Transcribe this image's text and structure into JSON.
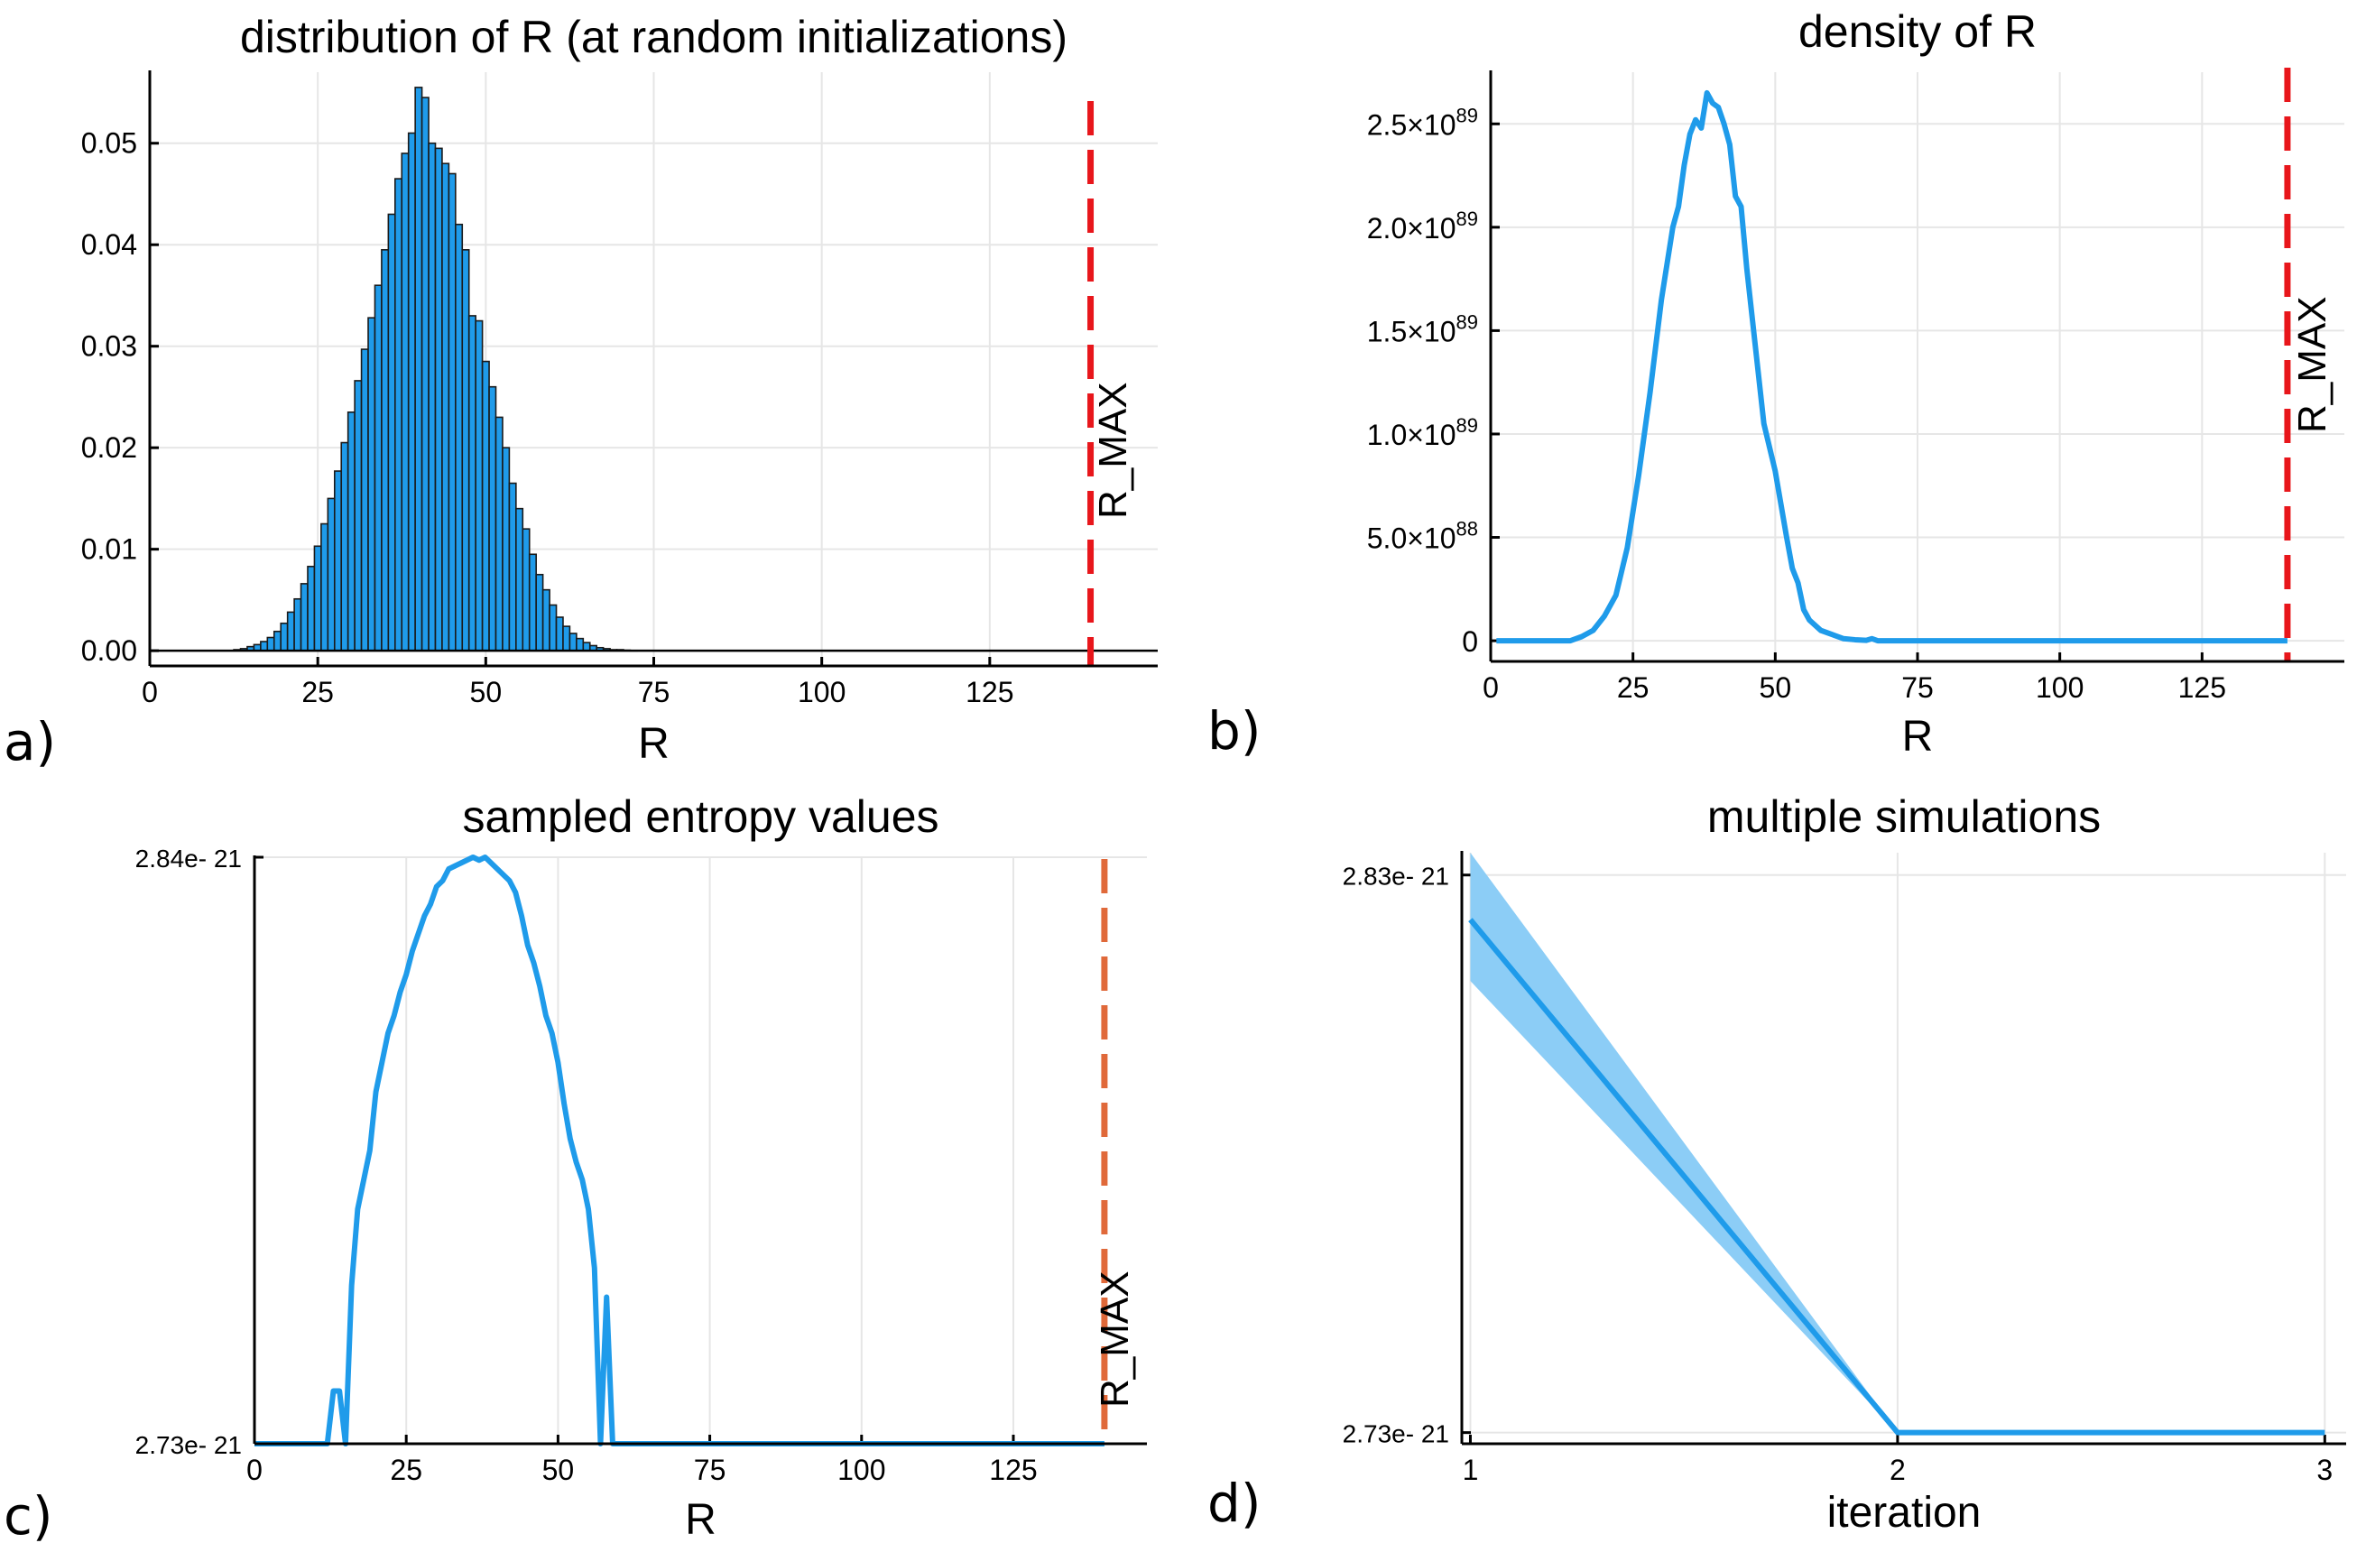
{
  "panel_labels": [
    "a)",
    "b)",
    "c)",
    "d)"
  ],
  "colors": {
    "series": "#1f9bea",
    "rmax_red": "#e8161b",
    "rmax_orange": "#e0693a",
    "band": "#8ccdf6"
  },
  "chart_data": [
    {
      "type": "bar",
      "title": "distribution of R (at random initializations)",
      "xlabel": "R",
      "ylabel": "",
      "xlim": [
        0,
        150
      ],
      "ylim": [
        -0.0015,
        0.057
      ],
      "xticks": [
        0,
        25,
        50,
        75,
        100,
        125
      ],
      "xtick_labels": [
        "0",
        "25",
        "50",
        "75",
        "100",
        "125"
      ],
      "yticks": [
        0,
        0.01,
        0.02,
        0.03,
        0.04,
        0.05
      ],
      "ytick_labels": [
        "0.00",
        "0.01",
        "0.02",
        "0.03",
        "0.04",
        "0.05"
      ],
      "bin_width": 1,
      "x": [
        13,
        14,
        15,
        16,
        17,
        18,
        19,
        20,
        21,
        22,
        23,
        24,
        25,
        26,
        27,
        28,
        29,
        30,
        31,
        32,
        33,
        34,
        35,
        36,
        37,
        38,
        39,
        40,
        41,
        42,
        43,
        44,
        45,
        46,
        47,
        48,
        49,
        50,
        51,
        52,
        53,
        54,
        55,
        56,
        57,
        58,
        59,
        60,
        61,
        62,
        63,
        64,
        65,
        66,
        67,
        68,
        69,
        70,
        71,
        72
      ],
      "values": [
        0.0001,
        0.0002,
        0.0004,
        0.0006,
        0.0009,
        0.0013,
        0.0019,
        0.0027,
        0.0038,
        0.0051,
        0.0066,
        0.0083,
        0.0103,
        0.0125,
        0.015,
        0.0177,
        0.0205,
        0.0235,
        0.0266,
        0.0297,
        0.0328,
        0.036,
        0.0395,
        0.043,
        0.0465,
        0.049,
        0.051,
        0.0555,
        0.0545,
        0.05,
        0.0495,
        0.048,
        0.047,
        0.042,
        0.0395,
        0.033,
        0.0325,
        0.0285,
        0.026,
        0.023,
        0.02,
        0.0165,
        0.014,
        0.012,
        0.0095,
        0.0075,
        0.006,
        0.0045,
        0.0033,
        0.0024,
        0.0017,
        0.0012,
        0.0008,
        0.0005,
        0.0003,
        0.0002,
        0.0001,
        0.0001,
        5e-05,
        3e-05
      ],
      "rmax": {
        "x": 140,
        "label": "R_MAX"
      },
      "grid": true
    },
    {
      "type": "line",
      "title": "density of R",
      "xlabel": "R",
      "ylabel": "",
      "xlim": [
        0,
        150
      ],
      "ylim": [
        -0.1,
        2.75
      ],
      "y_scale_note": "x 10^89",
      "xticks": [
        0,
        25,
        50,
        75,
        100,
        125
      ],
      "xtick_labels": [
        "0",
        "25",
        "50",
        "75",
        "100",
        "125"
      ],
      "yticks": [
        0,
        0.5,
        1.0,
        1.5,
        2.0,
        2.5
      ],
      "ytick_labels": [
        {
          "mant": "0",
          "exp": ""
        },
        {
          "mant": "5.0×10",
          "exp": "88"
        },
        {
          "mant": "1.0×10",
          "exp": "89"
        },
        {
          "mant": "1.5×10",
          "exp": "89"
        },
        {
          "mant": "2.0×10",
          "exp": "89"
        },
        {
          "mant": "2.5×10",
          "exp": "89"
        }
      ],
      "x": [
        1,
        5,
        10,
        14,
        16,
        18,
        20,
        22,
        24,
        26,
        28,
        30,
        32,
        33,
        34,
        35,
        36,
        37,
        38,
        39,
        40,
        41,
        42,
        43,
        44,
        45,
        46,
        48,
        50,
        52,
        53,
        54,
        55,
        56,
        58,
        60,
        62,
        64,
        66,
        67,
        68,
        70,
        80,
        100,
        120,
        140
      ],
      "y": [
        0,
        0,
        0,
        0,
        0.02,
        0.05,
        0.12,
        0.22,
        0.45,
        0.8,
        1.2,
        1.65,
        2.0,
        2.1,
        2.3,
        2.45,
        2.52,
        2.48,
        2.65,
        2.6,
        2.58,
        2.5,
        2.4,
        2.15,
        2.1,
        1.8,
        1.55,
        1.05,
        0.82,
        0.5,
        0.35,
        0.28,
        0.15,
        0.1,
        0.05,
        0.03,
        0.01,
        0.005,
        0.002,
        0.01,
        0,
        0,
        0,
        0,
        0,
        0
      ],
      "rmax": {
        "x": 140,
        "label": "R_MAX"
      },
      "grid": true
    },
    {
      "type": "line",
      "title": "sampled entropy values",
      "xlabel": "R",
      "ylabel": "",
      "xlim": [
        0,
        147
      ],
      "ylim": [
        0,
        1
      ],
      "xticks": [
        0,
        25,
        50,
        75,
        100,
        125
      ],
      "xtick_labels": [
        "0",
        "25",
        "50",
        "75",
        "100",
        "125"
      ],
      "ytick_labels": [
        "2.73e- 21",
        "2.84e- 21"
      ],
      "yticks": [
        0,
        1
      ],
      "x": [
        0,
        5,
        10,
        12,
        13,
        14,
        15,
        16,
        17,
        18,
        19,
        20,
        21,
        22,
        23,
        24,
        25,
        26,
        27,
        28,
        29,
        30,
        31,
        32,
        33,
        34,
        35,
        36,
        37,
        38,
        39,
        40,
        41,
        42,
        43,
        44,
        45,
        46,
        47,
        48,
        49,
        50,
        51,
        52,
        53,
        54,
        55,
        56,
        57,
        58,
        59,
        60,
        61,
        62,
        63,
        64,
        65,
        66,
        67,
        68,
        69,
        70,
        80,
        100,
        120,
        140
      ],
      "y": [
        0,
        0,
        0,
        0,
        0.09,
        0.09,
        0,
        0.27,
        0.4,
        0.45,
        0.5,
        0.6,
        0.65,
        0.7,
        0.73,
        0.77,
        0.8,
        0.84,
        0.87,
        0.9,
        0.92,
        0.95,
        0.96,
        0.98,
        0.985,
        0.99,
        0.995,
        1,
        0.995,
        1,
        0.99,
        0.98,
        0.97,
        0.96,
        0.94,
        0.9,
        0.85,
        0.82,
        0.78,
        0.73,
        0.7,
        0.65,
        0.58,
        0.52,
        0.48,
        0.45,
        0.4,
        0.3,
        0,
        0.25,
        0,
        0,
        0,
        0,
        0,
        0,
        0,
        0,
        0,
        0,
        0,
        0,
        0,
        0,
        0,
        0
      ],
      "rmax": {
        "x": 140,
        "label": "R_MAX"
      },
      "grid": true
    },
    {
      "type": "line",
      "title": "multiple simulations",
      "xlabel": "iteration",
      "ylabel": "",
      "xlim": [
        0.98,
        3.05
      ],
      "ylim": [
        -0.02,
        1.04
      ],
      "xticks": [
        1,
        2,
        3
      ],
      "xtick_labels": [
        "1",
        "2",
        "3"
      ],
      "yticks": [
        0,
        1
      ],
      "ytick_labels": [
        "2.73e- 21",
        "2.83e- 21"
      ],
      "x": [
        1,
        2,
        3
      ],
      "y": [
        0.92,
        0,
        0
      ],
      "band_low": [
        0.81,
        0,
        0
      ],
      "band_high": [
        1.04,
        0,
        0
      ],
      "grid": true
    }
  ]
}
